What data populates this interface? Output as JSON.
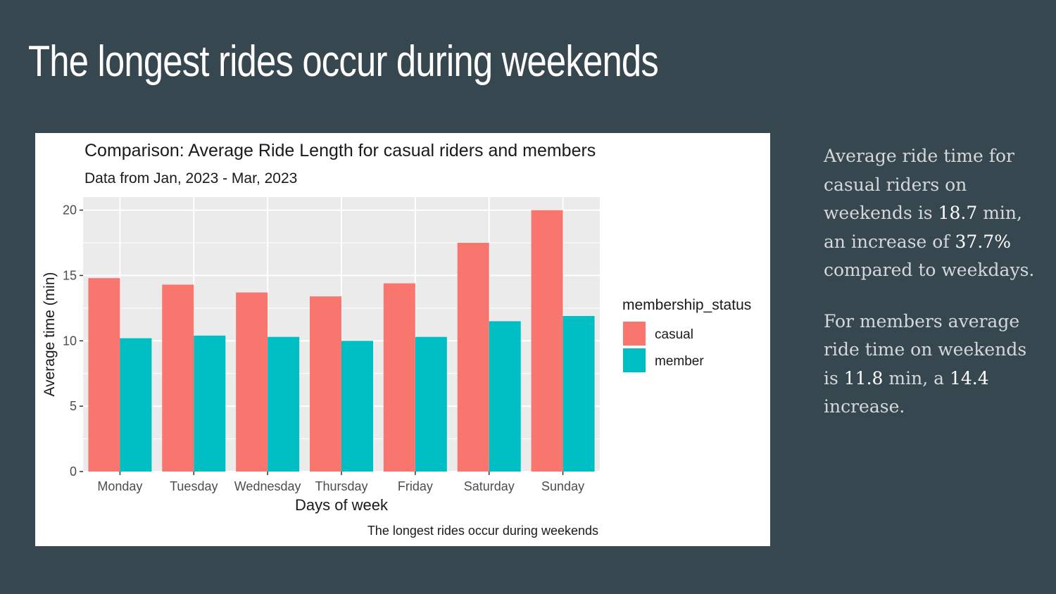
{
  "slide": {
    "title": "The longest rides occur during weekends"
  },
  "notes": {
    "p1": {
      "a": "Average ride time for casual riders on weekends is ",
      "b": "18.7",
      "c": " min, an increase of ",
      "d": "37.7%",
      "e": " compared to weekdays."
    },
    "p2": {
      "a": "For members average ride time on weekends is ",
      "b": "11.8",
      "c": " min, a ",
      "d": "14.4",
      "e": " increase."
    }
  },
  "chart_data": {
    "type": "bar",
    "title": "Comparison: Average Ride Length for casual riders and members",
    "subtitle": "Data from Jan, 2023 - Mar, 2023",
    "caption": "The longest rides occur during weekends",
    "xlabel": "Days of week",
    "ylabel": "Average time (min)",
    "ylim": [
      0,
      21
    ],
    "yticks": [
      0,
      5,
      10,
      15,
      20
    ],
    "grid": true,
    "legend_title": "membership_status",
    "legend_position": "right",
    "categories": [
      "Monday",
      "Tuesday",
      "Wednesday",
      "Thursday",
      "Friday",
      "Saturday",
      "Sunday"
    ],
    "series": [
      {
        "name": "casual",
        "color": "#f8766d",
        "values": [
          14.8,
          14.3,
          13.7,
          13.4,
          14.4,
          17.5,
          20.0
        ]
      },
      {
        "name": "member",
        "color": "#00bfc4",
        "values": [
          10.2,
          10.4,
          10.3,
          10.0,
          10.3,
          11.5,
          11.9
        ]
      }
    ],
    "panel_color": "#ebebeb",
    "gridline_color": "#ffffff"
  }
}
